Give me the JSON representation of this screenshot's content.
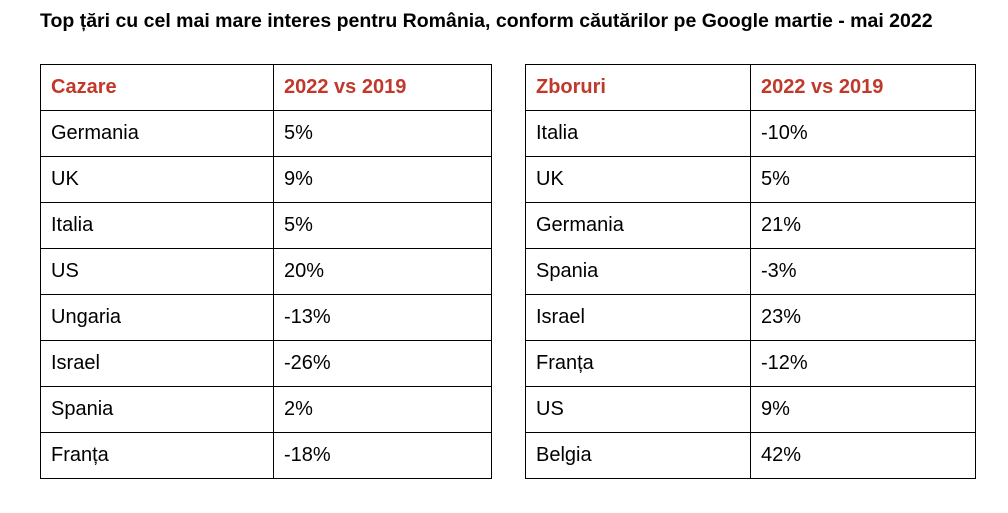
{
  "title": "Top țări cu cel mai mare interes pentru România, conform căutărilor pe Google martie - mai 2022",
  "colors": {
    "header_text": "#c0392b",
    "border": "#000000"
  },
  "tables": [
    {
      "headers": [
        "Cazare",
        "2022 vs 2019"
      ],
      "rows": [
        [
          "Germania",
          "5%"
        ],
        [
          "UK",
          "9%"
        ],
        [
          "Italia",
          "5%"
        ],
        [
          "US",
          "20%"
        ],
        [
          "Ungaria",
          "-13%"
        ],
        [
          "Israel",
          "-26%"
        ],
        [
          "Spania",
          "2%"
        ],
        [
          "Franța",
          "-18%"
        ]
      ]
    },
    {
      "headers": [
        "Zboruri",
        "2022 vs 2019"
      ],
      "rows": [
        [
          "Italia",
          "-10%"
        ],
        [
          "UK",
          "5%"
        ],
        [
          "Germania",
          "21%"
        ],
        [
          "Spania",
          "-3%"
        ],
        [
          "Israel",
          "23%"
        ],
        [
          "Franța",
          "-12%"
        ],
        [
          "US",
          "9%"
        ],
        [
          "Belgia",
          "42%"
        ]
      ]
    }
  ]
}
